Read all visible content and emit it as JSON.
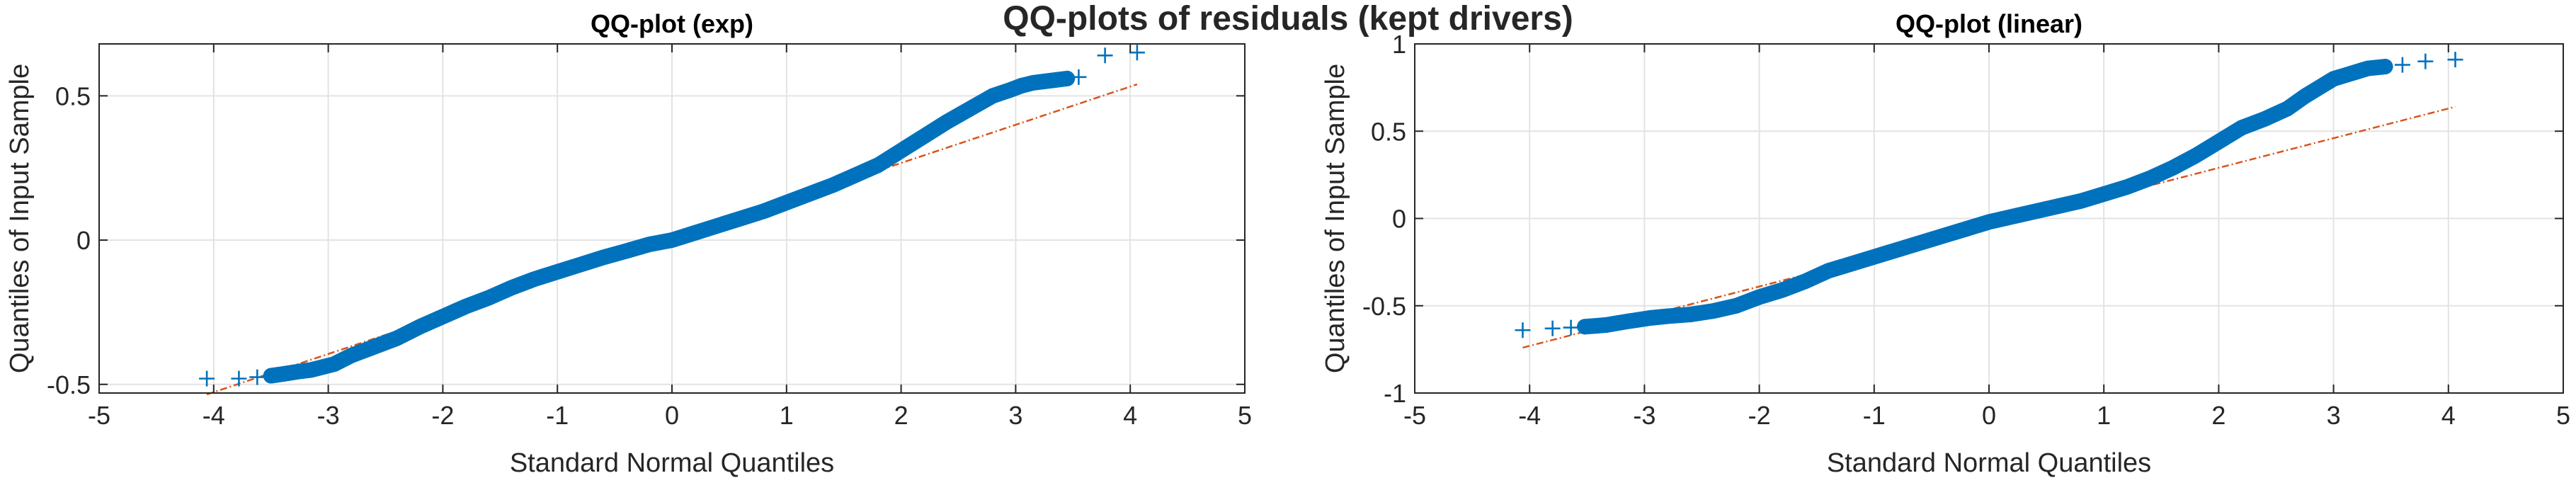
{
  "figure": {
    "title": "QQ-plots of residuals  (kept drivers)"
  },
  "chart_data": [
    {
      "type": "scatter",
      "title": "QQ-plot (exp)",
      "xlabel": "Standard Normal Quantiles",
      "ylabel": "Quantiles of Input Sample",
      "xlim": [
        -5,
        5
      ],
      "ylim": [
        -0.53,
        0.68
      ],
      "xticks": [
        -5,
        -4,
        -3,
        -2,
        -1,
        0,
        1,
        2,
        3,
        4,
        5
      ],
      "yticks": [
        -0.5,
        0,
        0.5
      ],
      "ytick_labels": [
        "-0.5",
        "0",
        "0.5"
      ],
      "grid": true,
      "marker_color": "#0072BD",
      "ref_color": "#D95319",
      "series": [
        {
          "x": [
            -4.06,
            -3.78,
            -3.62,
            -3.5,
            -3.41,
            -3.33,
            -3.25,
            -3.15,
            -3.05,
            -2.95,
            -2.8,
            -2.6,
            -2.4,
            -2.2,
            -2.0,
            -1.8,
            -1.6,
            -1.4,
            -1.2,
            -1.0,
            -0.8,
            -0.6,
            -0.4,
            -0.2,
            0.0,
            0.2,
            0.4,
            0.6,
            0.8,
            1.0,
            1.2,
            1.4,
            1.6,
            1.8,
            2.0,
            2.2,
            2.4,
            2.6,
            2.8,
            2.95,
            3.05,
            3.15,
            3.25,
            3.35,
            3.45,
            3.55,
            3.78,
            4.06
          ],
          "y": [
            -0.48,
            -0.48,
            -0.475,
            -0.47,
            -0.465,
            -0.46,
            -0.455,
            -0.45,
            -0.44,
            -0.43,
            -0.4,
            -0.37,
            -0.34,
            -0.3,
            -0.265,
            -0.23,
            -0.2,
            -0.165,
            -0.135,
            -0.11,
            -0.085,
            -0.06,
            -0.038,
            -0.015,
            0.0,
            0.025,
            0.05,
            0.075,
            0.1,
            0.13,
            0.16,
            0.19,
            0.225,
            0.26,
            0.31,
            0.36,
            0.41,
            0.455,
            0.5,
            0.52,
            0.535,
            0.545,
            0.55,
            0.555,
            0.56,
            0.565,
            0.64,
            0.65
          ]
        }
      ],
      "reference_line": {
        "x": [
          -4.06,
          4.06
        ],
        "y": [
          -0.535,
          0.54
        ]
      }
    },
    {
      "type": "scatter",
      "title": "QQ-plot (linear)",
      "xlabel": "Standard Normal Quantiles",
      "ylabel": "Quantiles of Input Sample",
      "xlim": [
        -5,
        5
      ],
      "ylim": [
        -1,
        1
      ],
      "xticks": [
        -5,
        -4,
        -3,
        -2,
        -1,
        0,
        1,
        2,
        3,
        4,
        5
      ],
      "yticks": [
        -1,
        -0.5,
        0,
        0.5,
        1
      ],
      "ytick_labels": [
        "-1",
        "-0.5",
        "0",
        "0.5",
        "1"
      ],
      "grid": true,
      "marker_color": "#0072BD",
      "ref_color": "#D95319",
      "series": [
        {
          "x": [
            -4.06,
            -3.8,
            -3.64,
            -3.52,
            -3.42,
            -3.33,
            -3.24,
            -3.15,
            -3.05,
            -2.95,
            -2.8,
            -2.6,
            -2.4,
            -2.2,
            -2.0,
            -1.8,
            -1.6,
            -1.4,
            -1.2,
            -1.0,
            -0.8,
            -0.6,
            -0.4,
            -0.2,
            0.0,
            0.2,
            0.4,
            0.6,
            0.8,
            1.0,
            1.2,
            1.4,
            1.6,
            1.8,
            2.0,
            2.2,
            2.4,
            2.6,
            2.75,
            2.9,
            3.0,
            3.1,
            3.2,
            3.3,
            3.45,
            3.6,
            3.8,
            4.06
          ],
          "y": [
            -0.64,
            -0.63,
            -0.625,
            -0.62,
            -0.615,
            -0.61,
            -0.6,
            -0.59,
            -0.58,
            -0.57,
            -0.56,
            -0.55,
            -0.53,
            -0.5,
            -0.45,
            -0.41,
            -0.36,
            -0.3,
            -0.26,
            -0.22,
            -0.18,
            -0.14,
            -0.1,
            -0.06,
            -0.02,
            0.01,
            0.04,
            0.07,
            0.1,
            0.14,
            0.18,
            0.23,
            0.29,
            0.36,
            0.44,
            0.52,
            0.57,
            0.63,
            0.7,
            0.76,
            0.8,
            0.82,
            0.84,
            0.86,
            0.87,
            0.88,
            0.9,
            0.91
          ]
        }
      ],
      "reference_line": {
        "x": [
          -4.06,
          4.06
        ],
        "y": [
          -0.74,
          0.64
        ]
      }
    }
  ]
}
